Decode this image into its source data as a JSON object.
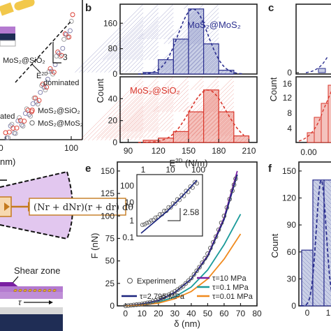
{
  "panels": {
    "b": "b",
    "c": "c",
    "e": "e",
    "f": "f"
  },
  "colors": {
    "blue": "#2b2f8f",
    "blue_fill": "#c9cfe6",
    "red": "#d9362b",
    "red_fill": "#f4c2bd",
    "purple": "#7a1fa2",
    "teal": "#1a9a9a",
    "orange": "#f08a1e",
    "navy": "#1a237e",
    "sheet_purple": "#b47ad0",
    "sheet_gray": "#d8d8d8",
    "sheet_navy": "#1f2d55",
    "sheet_yellow": "#f2c84b"
  },
  "panel_a": {
    "label_slope": "3",
    "label_e2d": "E",
    "label_e2d_sup": "2D",
    "label_dominated": "dominated",
    "label_partial_left": "ated",
    "series_top_label": "MoS₂@SiO₂",
    "legend": [
      {
        "label": "MoS₂@SiO₂",
        "color": "#d9362b"
      },
      {
        "label": "MoS₂@MoS₂",
        "color": "#666666"
      }
    ],
    "xtick_right": "100",
    "xtick_left": "0",
    "xlabel_partial": "nm)"
  },
  "panel_d": {
    "equation": "(N",
    "equation_full": "(Nr + dNr)(r + dr) dθ",
    "shear_label": "Shear zone",
    "tau": "τ"
  },
  "chart_data": [
    {
      "type": "bar",
      "title": "MoS₂@MoS₂",
      "xlabel": "E2D (N/m)",
      "ylabel": "Count",
      "bin_edges": [
        90,
        105,
        120,
        135,
        150,
        165,
        180,
        195,
        210
      ],
      "values": [
        0,
        5,
        45,
        110,
        205,
        95,
        12,
        0
      ],
      "ylim": [
        0,
        220
      ],
      "yticks": [
        0,
        80,
        160
      ],
      "fit": "gaussian",
      "color": "#2b2f8f"
    },
    {
      "type": "bar",
      "title": "MoS₂@SiO₂",
      "xlabel": "E2D (N/m)",
      "ylabel": "Count",
      "bin_edges": [
        90,
        105,
        120,
        135,
        150,
        165,
        180,
        195,
        210
      ],
      "values": [
        0,
        2,
        4,
        10,
        28,
        48,
        28,
        6
      ],
      "ylim": [
        0,
        60
      ],
      "yticks": [
        0,
        20,
        40
      ],
      "xticks": [
        90,
        120,
        150,
        180,
        210
      ],
      "fit": "gaussian",
      "color": "#d9362b"
    },
    {
      "type": "line",
      "xlabel": "δ (nm)",
      "ylabel": "F (nN)",
      "xlim": [
        -5,
        80
      ],
      "ylim": [
        0,
        160
      ],
      "xticks": [
        0,
        10,
        20,
        30,
        40,
        50,
        60,
        70,
        80
      ],
      "yticks": [
        0,
        25,
        50,
        75,
        100,
        125,
        150
      ],
      "experiment": {
        "name": "Experiment",
        "x": [
          0,
          5,
          10,
          15,
          20,
          25,
          30,
          35,
          40,
          45,
          50,
          55,
          60,
          65,
          68
        ],
        "y": [
          0,
          1,
          2,
          4,
          7,
          11,
          16,
          22,
          31,
          43,
          58,
          77,
          100,
          128,
          148
        ]
      },
      "series": [
        {
          "name": "τ=10 MPa",
          "color": "#7a1fa2",
          "x": [
            0,
            10,
            20,
            30,
            40,
            50,
            60,
            68
          ],
          "y": [
            0,
            2,
            6,
            15,
            30,
            56,
            98,
            150
          ]
        },
        {
          "name": "τ=2.795 MPa",
          "color": "#1a237e",
          "x": [
            0,
            10,
            20,
            30,
            40,
            50,
            60,
            68
          ],
          "y": [
            0,
            2,
            6,
            15,
            30,
            55,
            96,
            146
          ]
        },
        {
          "name": "τ=0.1 MPa",
          "color": "#1a9a9a",
          "x": [
            0,
            10,
            20,
            30,
            40,
            50,
            60,
            70
          ],
          "y": [
            0,
            1,
            4,
            10,
            21,
            40,
            68,
            102
          ]
        },
        {
          "name": "τ=0.01 MPa",
          "color": "#f08a1e",
          "x": [
            0,
            10,
            20,
            30,
            40,
            50,
            60,
            70
          ],
          "y": [
            0,
            1,
            3,
            8,
            16,
            30,
            52,
            80
          ]
        }
      ],
      "inset": {
        "type": "line",
        "scale": "log-log",
        "xticks": [
          "1",
          "10",
          "100"
        ],
        "yticks": [
          "0.1",
          "1",
          "10",
          "100"
        ],
        "slope_label": "2.58"
      }
    },
    {
      "type": "bar",
      "ylabel": "Count",
      "ylim": [
        0,
        160
      ],
      "yticks": [
        0,
        30,
        60,
        90,
        120,
        150
      ],
      "xticks": [
        "0",
        "1"
      ],
      "values": [
        62,
        140,
        140
      ],
      "fit": "gaussian",
      "color": "#2b2f8f"
    },
    {
      "type": "bar",
      "ylabel": "Count",
      "yticks_top": [
        0
      ],
      "yticks_bottom": [
        4,
        8,
        12,
        16
      ],
      "xticks": [
        "0.00"
      ],
      "color": "#d9362b"
    }
  ],
  "legend_e": [
    {
      "label": "Experiment",
      "kind": "marker"
    },
    {
      "label": "τ=10 MPa",
      "color": "#7a1fa2"
    },
    {
      "label": "τ=2.795 MPa",
      "color": "#1a237e"
    },
    {
      "label": "τ=0.1 MPa",
      "color": "#1a9a9a"
    },
    {
      "label": "τ=0.01 MPa",
      "color": "#f08a1e"
    }
  ]
}
